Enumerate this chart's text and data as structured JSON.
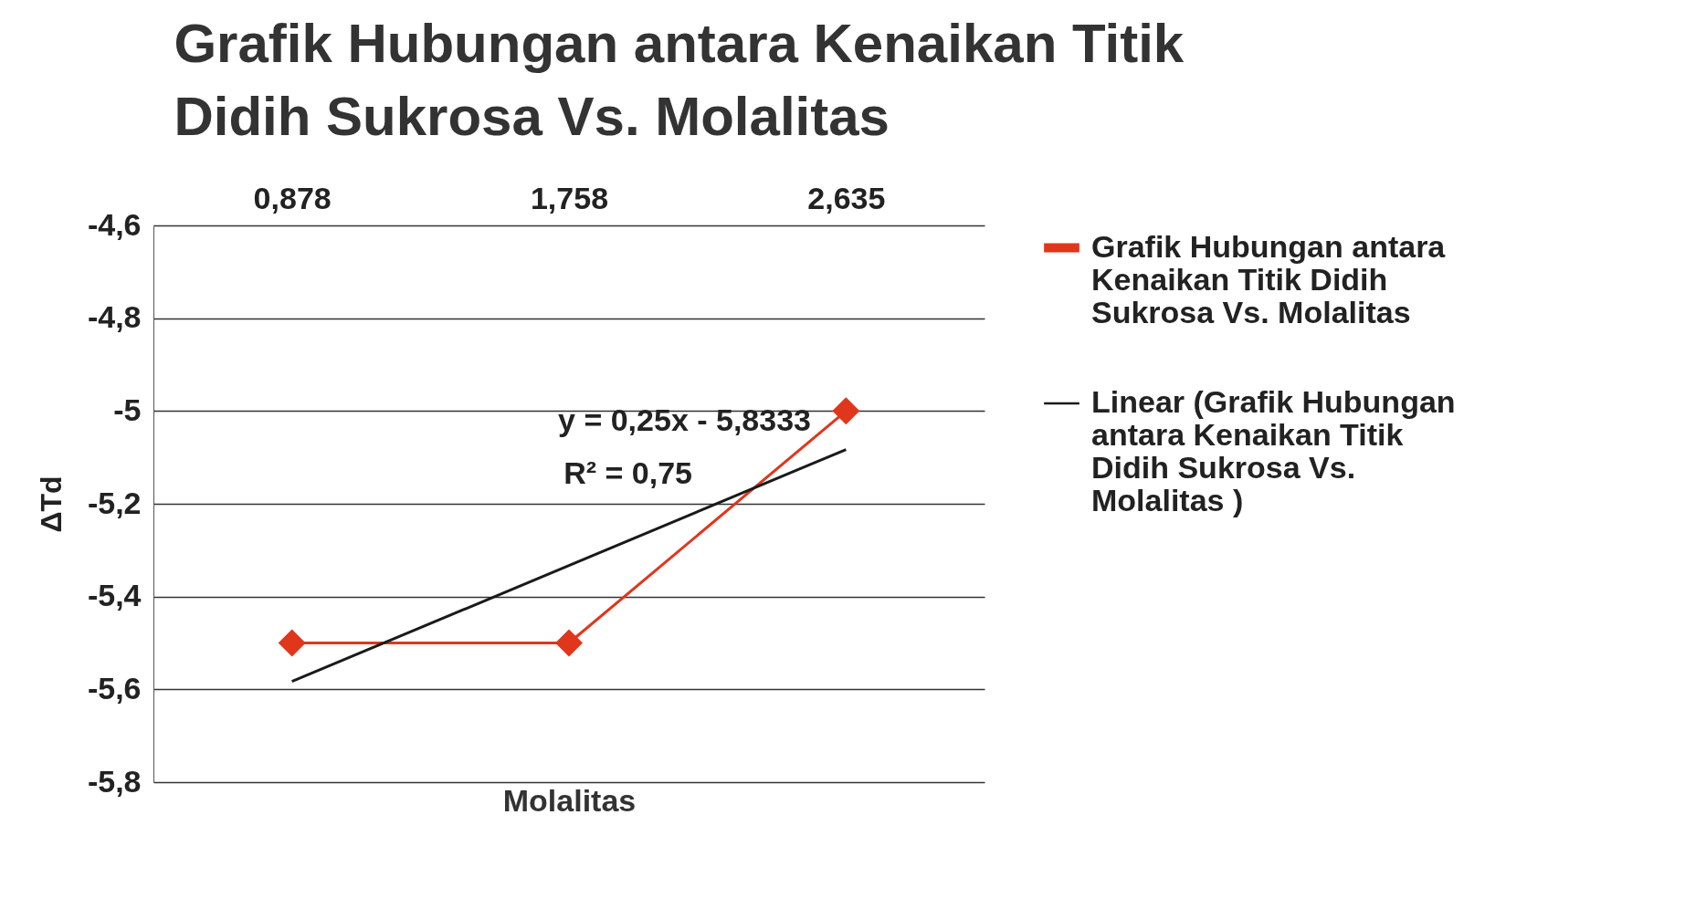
{
  "chart_data": {
    "type": "line",
    "title": [
      "Grafik Hubungan  antara Kenaikan Titik",
      "Didih Sukrosa Vs. Molalitas"
    ],
    "xlabel": "Molalitas",
    "ylabel": "ΔTd",
    "categories": [
      "0,878",
      "1,758",
      "2,635"
    ],
    "series": [
      {
        "name": "Grafik Hubungan  antara Kenaikan Titik Didih Sukrosa Vs. Molalitas",
        "color": "#e0361c",
        "values": [
          -5.5,
          -5.5,
          -5
        ],
        "marker": "diamond"
      },
      {
        "name": "Linear (Grafik Hubungan antara Kenaikan Titik Didih Sukrosa Vs. Molalitas )",
        "color": "#1a1a1a",
        "values": [
          -5.583,
          -5.333,
          -5.083
        ],
        "marker": "none"
      }
    ],
    "ylim": [
      -5.8,
      -4.6
    ],
    "yticks": [
      {
        "value": -4.6,
        "label": "-4,6"
      },
      {
        "value": -4.8,
        "label": "-4,8"
      },
      {
        "value": -5,
        "label": "-5"
      },
      {
        "value": -5.2,
        "label": "-5,2"
      },
      {
        "value": -5.4,
        "label": "-5,4"
      },
      {
        "value": -5.6,
        "label": "-5,6"
      },
      {
        "value": -5.8,
        "label": "-5,8"
      }
    ],
    "annotations": [
      "y = 0,25x - 5,8333",
      "R² = 0,75"
    ],
    "grid": "y",
    "legend": "right",
    "line_style": "solid"
  }
}
